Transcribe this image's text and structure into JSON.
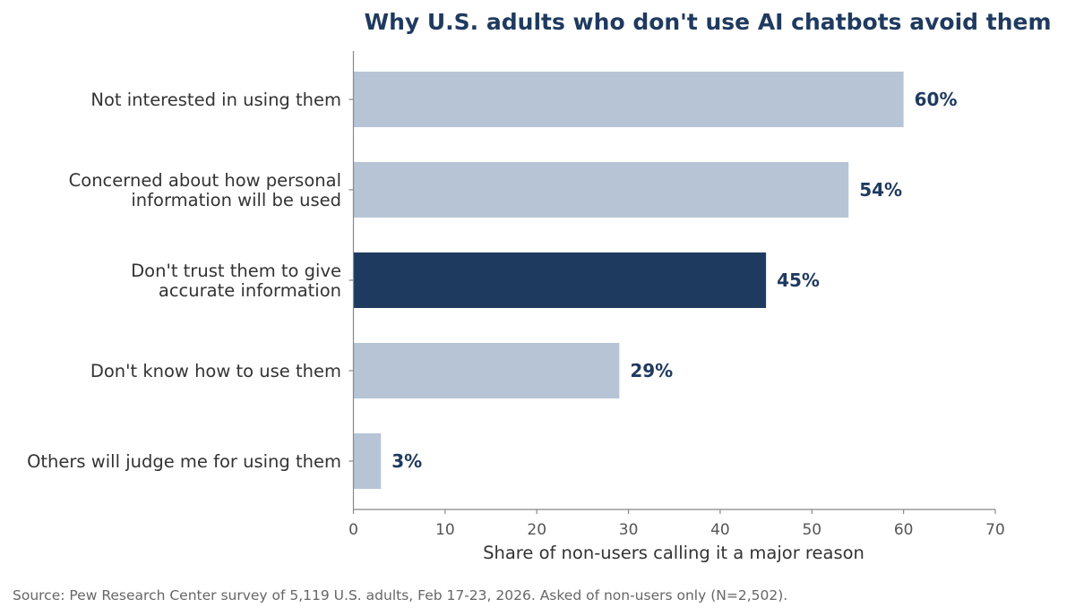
{
  "chart_data": {
    "type": "bar",
    "orientation": "horizontal",
    "title": "Why U.S. adults who don't use AI chatbots avoid them",
    "xlabel": "Share of non-users calling it a major reason",
    "ylabel": "",
    "xlim": [
      0,
      70
    ],
    "xticks": [
      0,
      10,
      20,
      30,
      40,
      50,
      60,
      70
    ],
    "grid": false,
    "categories": [
      [
        "Not interested in using them"
      ],
      [
        "Concerned about how personal",
        "information will be used"
      ],
      [
        "Don't trust them to give",
        "accurate information"
      ],
      [
        "Don't know how to use them"
      ],
      [
        "Others will judge me for using them"
      ]
    ],
    "values": [
      60,
      54,
      45,
      29,
      3
    ],
    "value_labels": [
      "60%",
      "54%",
      "45%",
      "29%",
      "3%"
    ],
    "highlight_index": 2,
    "colors": {
      "bar": "#b7c4d6",
      "highlight": "#1f3a5f",
      "value_label": "#1f3a5f",
      "title": "#1f3a5f",
      "axis": "#888888"
    }
  },
  "source": "Source: Pew Research Center survey of 5,119 U.S. adults, Feb 17-23, 2026. Asked of non-users only (N=2,502)."
}
